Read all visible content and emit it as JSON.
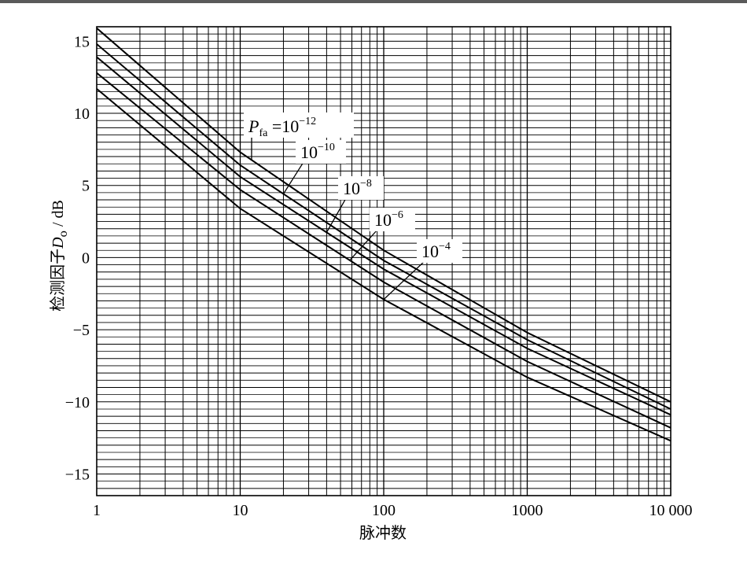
{
  "chart_data": {
    "type": "line",
    "xlabel": "脉冲数",
    "ylabel": "检测因子",
    "ylabel_symbol": "D",
    "ylabel_subscript": "o",
    "ylabel_unit": " / dB",
    "xscale": "log",
    "xlim": [
      1,
      10000
    ],
    "ylim": [
      -16.5,
      16
    ],
    "x_ticks": [
      1,
      10,
      100,
      1000,
      10000
    ],
    "x_tick_labels": [
      "1",
      "10",
      "100",
      "1000",
      "10 000"
    ],
    "y_ticks": [
      15,
      10,
      5,
      0,
      -5,
      -10,
      -15
    ],
    "y_tick_labels": [
      "15",
      "10",
      "5",
      "0",
      "−5",
      "−10",
      "−15"
    ],
    "grid": true,
    "line_color": "#000000",
    "series": [
      {
        "name": "10^-12",
        "x": [
          1,
          10,
          100,
          1000,
          10000
        ],
        "y": [
          15.9,
          7.3,
          0.5,
          -5.2,
          -10.0
        ]
      },
      {
        "name": "10^-10",
        "x": [
          1,
          10,
          100,
          1000,
          10000
        ],
        "y": [
          14.8,
          6.4,
          -0.2,
          -5.7,
          -10.5
        ]
      },
      {
        "name": "10^-8",
        "x": [
          1,
          10,
          100,
          1000,
          10000
        ],
        "y": [
          13.9,
          5.6,
          -0.8,
          -6.3,
          -10.9
        ]
      },
      {
        "name": "10^-6",
        "x": [
          1,
          10,
          100,
          1000,
          10000
        ],
        "y": [
          12.8,
          4.7,
          -1.7,
          -7.2,
          -11.8
        ]
      },
      {
        "name": "10^-4",
        "x": [
          1,
          10,
          100,
          1000,
          10000
        ],
        "y": [
          11.7,
          3.4,
          -2.9,
          -8.3,
          -12.7
        ]
      }
    ],
    "annotations": [
      {
        "symbol": "P",
        "subscript": "fa",
        "eq": " =10",
        "sup": "−12"
      },
      {
        "base": "10",
        "sup": "−10"
      },
      {
        "base": "10",
        "sup": "−8"
      },
      {
        "base": "10",
        "sup": "−6"
      },
      {
        "base": "10",
        "sup": "−4"
      }
    ]
  }
}
